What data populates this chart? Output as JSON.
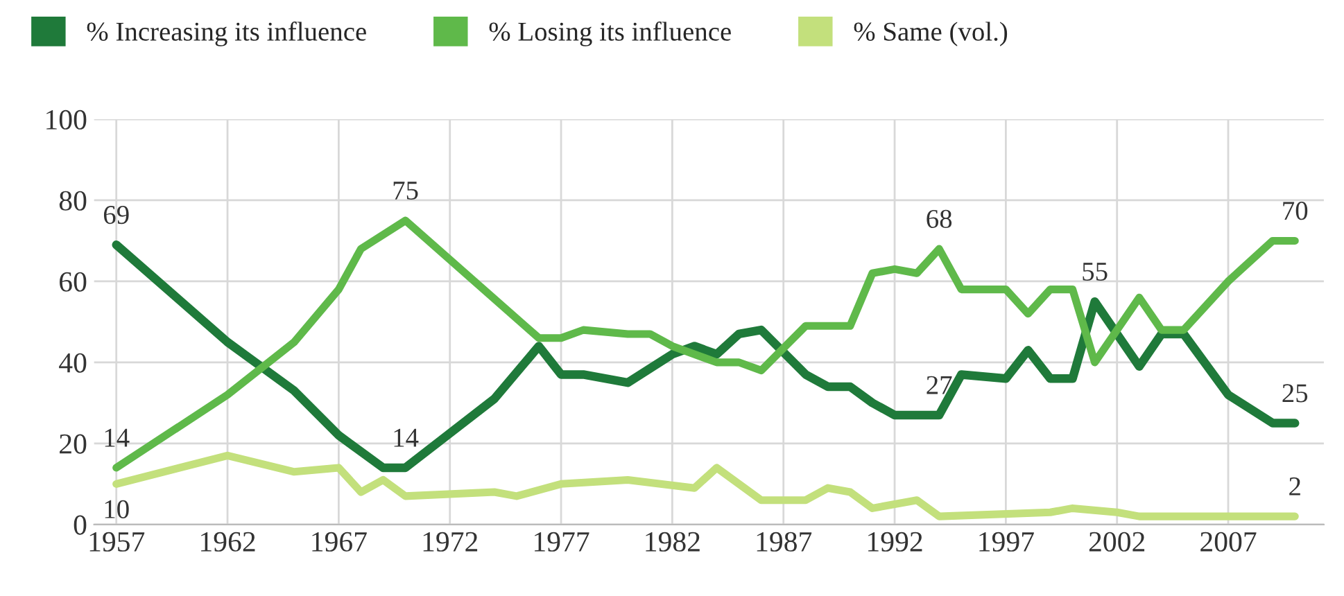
{
  "chart_data": {
    "type": "line",
    "series": [
      {
        "name": "% Increasing its influence",
        "color": "#1f7a3a",
        "x": [
          1957,
          1962,
          1965,
          1967,
          1969,
          1970,
          1974,
          1976,
          1977,
          1978,
          1980,
          1982,
          1983,
          1984,
          1985,
          1986,
          1988,
          1989,
          1990,
          1991,
          1992,
          1994,
          1995,
          1997,
          1998,
          1999,
          2000,
          2001,
          2003,
          2004,
          2005,
          2007,
          2009,
          2010
        ],
        "values": [
          69,
          45,
          33,
          22,
          14,
          14,
          31,
          44,
          37,
          37,
          35,
          42,
          44,
          42,
          47,
          48,
          37,
          34,
          34,
          30,
          27,
          27,
          37,
          36,
          43,
          36,
          36,
          55,
          39,
          47,
          47,
          32,
          25,
          25
        ]
      },
      {
        "name": "% Losing its influence",
        "color": "#5fb94a",
        "x": [
          1957,
          1962,
          1965,
          1967,
          1968,
          1970,
          1976,
          1977,
          1978,
          1980,
          1981,
          1982,
          1984,
          1985,
          1986,
          1988,
          1990,
          1991,
          1992,
          1993,
          1994,
          1995,
          1997,
          1998,
          1999,
          2000,
          2001,
          2003,
          2004,
          2005,
          2007,
          2009,
          2010
        ],
        "values": [
          14,
          32,
          45,
          58,
          68,
          75,
          46,
          46,
          48,
          47,
          47,
          44,
          40,
          40,
          38,
          49,
          49,
          62,
          63,
          62,
          68,
          58,
          58,
          52,
          58,
          58,
          40,
          56,
          48,
          48,
          60,
          70,
          70
        ]
      },
      {
        "name": "% Same (vol.)",
        "color": "#c3e07c",
        "x": [
          1957,
          1962,
          1965,
          1967,
          1968,
          1969,
          1970,
          1974,
          1975,
          1977,
          1980,
          1983,
          1984,
          1986,
          1988,
          1989,
          1990,
          1991,
          1993,
          1994,
          1999,
          2000,
          2002,
          2003,
          2010
        ],
        "values": [
          10,
          17,
          13,
          14,
          8,
          11,
          7,
          8,
          7,
          10,
          11,
          9,
          14,
          6,
          6,
          9,
          8,
          4,
          6,
          2,
          3,
          4,
          3,
          2,
          2
        ]
      }
    ],
    "annotations": [
      {
        "text": "69",
        "x": 1957,
        "y": 69
      },
      {
        "text": "75",
        "x": 1970,
        "y": 75
      },
      {
        "text": "14",
        "x": 1970,
        "y": 14
      },
      {
        "text": "14",
        "x": 1957,
        "y": 14
      },
      {
        "text": "10",
        "x": 1957,
        "y": 10
      },
      {
        "text": "68",
        "x": 1994,
        "y": 68
      },
      {
        "text": "27",
        "x": 1994,
        "y": 27
      },
      {
        "text": "55",
        "x": 2001,
        "y": 55
      },
      {
        "text": "70",
        "x": 2010,
        "y": 70
      },
      {
        "text": "25",
        "x": 2010,
        "y": 25
      },
      {
        "text": "2",
        "x": 2010,
        "y": 2
      }
    ],
    "xlim": [
      1956,
      2011.3
    ],
    "xticks": [
      1957,
      1962,
      1967,
      1972,
      1977,
      1982,
      1987,
      1992,
      1997,
      2002,
      2007
    ],
    "ylim": [
      0,
      100
    ],
    "yticks": [
      0,
      20,
      40,
      60,
      80,
      100
    ],
    "grid": true,
    "legend": "top left",
    "marker": "none",
    "line_style": "solid"
  }
}
